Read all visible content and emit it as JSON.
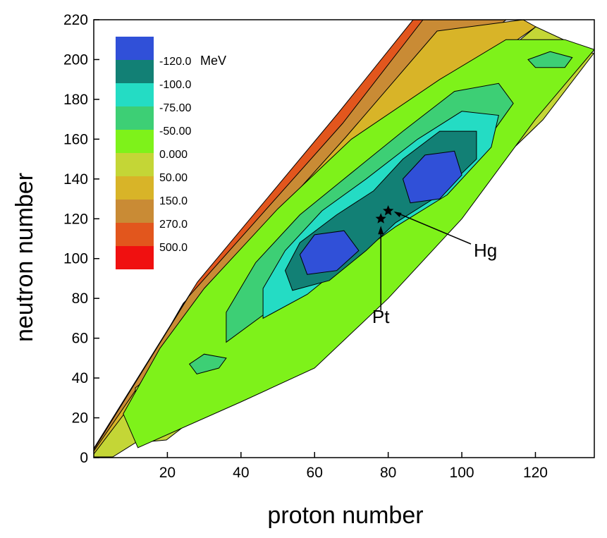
{
  "chart_data": {
    "type": "contour",
    "title": "",
    "xlabel": "proton number",
    "ylabel": "neutron number",
    "xlim": [
      0,
      136
    ],
    "ylim": [
      0,
      220
    ],
    "x_ticks": [
      20,
      40,
      60,
      80,
      100,
      120
    ],
    "y_ticks": [
      0,
      20,
      40,
      60,
      80,
      100,
      120,
      140,
      160,
      180,
      200,
      220
    ],
    "legend": {
      "position": "top-left",
      "unit": "MeV",
      "levels": [
        {
          "label": "-120.0",
          "color": "#3050d8"
        },
        {
          "label": "-100.0",
          "color": "#128075"
        },
        {
          "label": "-75.00",
          "color": "#24dcc4"
        },
        {
          "label": "-50.00",
          "color": "#3dcf75"
        },
        {
          "label": "0.000",
          "color": "#7ef21a"
        },
        {
          "label": "50.00",
          "color": "#c4d636"
        },
        {
          "label": "150.0",
          "color": "#d8b428"
        },
        {
          "label": "270.0",
          "color": "#c98b35"
        },
        {
          "label": "500.0",
          "color": "#e2561d"
        },
        {
          "label": "",
          "color": "#f01010"
        }
      ]
    },
    "regions": [
      {
        "level": "0.000",
        "color": "#7ef21a",
        "polygon": [
          [
            12,
            5
          ],
          [
            40,
            28
          ],
          [
            60,
            45
          ],
          [
            80,
            80
          ],
          [
            100,
            120
          ],
          [
            120,
            170
          ],
          [
            136,
            205
          ],
          [
            128,
            210
          ],
          [
            112,
            210
          ],
          [
            94,
            190
          ],
          [
            70,
            160
          ],
          [
            50,
            125
          ],
          [
            30,
            85
          ],
          [
            18,
            55
          ],
          [
            8,
            22
          ]
        ]
      },
      {
        "level": "-50.00",
        "color": "#3dcf75",
        "polygon": [
          [
            36,
            58
          ],
          [
            50,
            77
          ],
          [
            62,
            93
          ],
          [
            76,
            110
          ],
          [
            92,
            130
          ],
          [
            104,
            152
          ],
          [
            114,
            178
          ],
          [
            110,
            188
          ],
          [
            98,
            184
          ],
          [
            84,
            164
          ],
          [
            70,
            143
          ],
          [
            56,
            122
          ],
          [
            44,
            98
          ],
          [
            36,
            73
          ]
        ]
      },
      {
        "level": "-75.00",
        "color": "#24dcc4",
        "polygon": [
          [
            46,
            70
          ],
          [
            58,
            82
          ],
          [
            70,
            100
          ],
          [
            82,
            116
          ],
          [
            96,
            132
          ],
          [
            108,
            156
          ],
          [
            110,
            172
          ],
          [
            100,
            174
          ],
          [
            88,
            160
          ],
          [
            74,
            140
          ],
          [
            62,
            124
          ],
          [
            52,
            104
          ],
          [
            46,
            85
          ]
        ]
      },
      {
        "level": "-100.0",
        "color": "#128075",
        "polygon": [
          [
            54,
            84
          ],
          [
            64,
            89
          ],
          [
            74,
            104
          ],
          [
            82,
            118
          ],
          [
            94,
            132
          ],
          [
            104,
            150
          ],
          [
            104,
            164
          ],
          [
            94,
            164
          ],
          [
            84,
            150
          ],
          [
            76,
            134
          ],
          [
            66,
            122
          ],
          [
            56,
            108
          ],
          [
            52,
            94
          ]
        ]
      },
      {
        "level": "-120.0",
        "color": "#3050d8",
        "polygon": [
          [
            58,
            92
          ],
          [
            66,
            94
          ],
          [
            72,
            104
          ],
          [
            68,
            114
          ],
          [
            60,
            112
          ],
          [
            56,
            102
          ]
        ]
      },
      {
        "level": "-120.0",
        "color": "#3050d8",
        "polygon": [
          [
            86,
            128
          ],
          [
            94,
            130
          ],
          [
            100,
            142
          ],
          [
            98,
            154
          ],
          [
            90,
            152
          ],
          [
            84,
            140
          ]
        ]
      },
      {
        "level": "-50.00",
        "color": "#3dcf75",
        "polygon": [
          [
            28,
            42
          ],
          [
            34,
            45
          ],
          [
            36,
            50
          ],
          [
            30,
            52
          ],
          [
            26,
            47
          ]
        ]
      },
      {
        "level": "-50.00",
        "color": "#3dcf75",
        "polygon": [
          [
            120,
            196
          ],
          [
            128,
            196
          ],
          [
            130,
            201
          ],
          [
            124,
            204
          ],
          [
            118,
            200
          ]
        ]
      }
    ],
    "markers": [
      {
        "label": "Pt",
        "symbol": "star",
        "x": 78,
        "y": 120
      },
      {
        "label": "Hg",
        "symbol": "star",
        "x": 80,
        "y": 124
      }
    ]
  }
}
